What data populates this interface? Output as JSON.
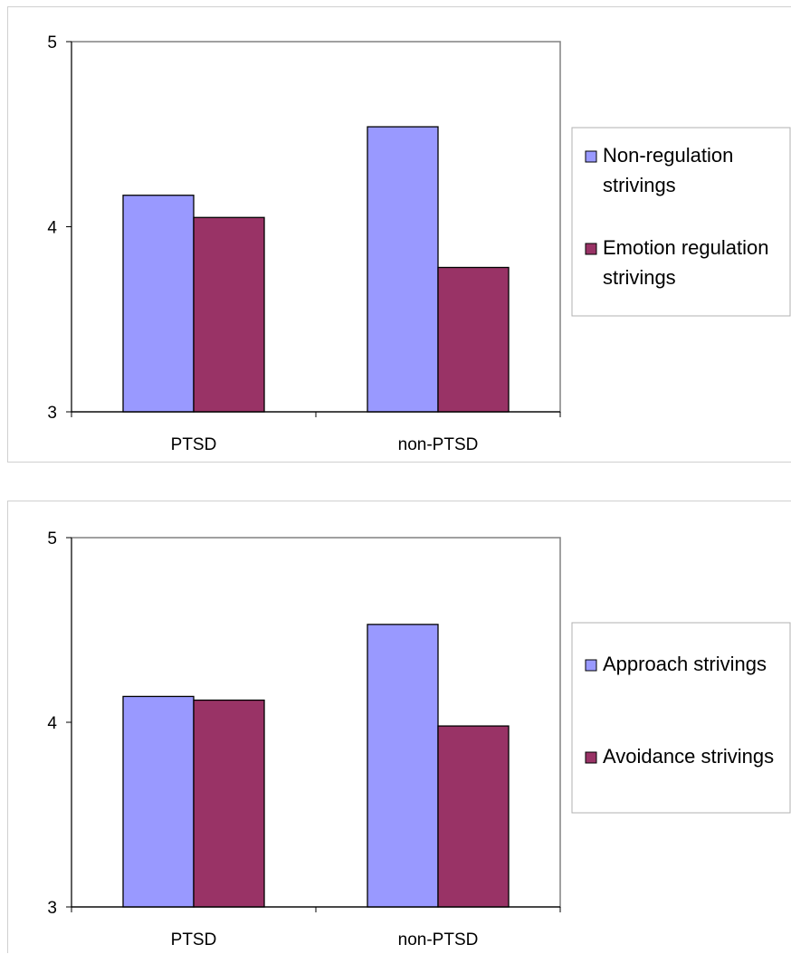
{
  "chart_data": [
    {
      "type": "bar",
      "categories": [
        "PTSD",
        "non-PTSD"
      ],
      "series": [
        {
          "name": "Non-regulation strivings",
          "values": [
            4.17,
            4.54
          ],
          "color": "#9999ff"
        },
        {
          "name": "Emotion regulation strivings",
          "values": [
            4.05,
            3.78
          ],
          "color": "#993366"
        }
      ],
      "ylim": [
        3,
        5
      ],
      "yticks": [
        "3",
        "4",
        "5"
      ],
      "legend": {
        "position": "right",
        "entries": [
          {
            "lines": [
              "Non-regulation",
              "strivings"
            ]
          },
          {
            "lines": [
              "Emotion regulation",
              "strivings"
            ]
          }
        ]
      },
      "grid": false
    },
    {
      "type": "bar",
      "categories": [
        "PTSD",
        "non-PTSD"
      ],
      "series": [
        {
          "name": "Approach strivings",
          "values": [
            4.14,
            4.53
          ],
          "color": "#9999ff"
        },
        {
          "name": "Avoidance strivings",
          "values": [
            4.12,
            3.98
          ],
          "color": "#993366"
        }
      ],
      "ylim": [
        3,
        5
      ],
      "yticks": [
        "3",
        "4",
        "5"
      ],
      "legend": {
        "position": "right",
        "entries": [
          {
            "lines": [
              "Approach strivings"
            ]
          },
          {
            "lines": [
              "Avoidance strivings"
            ]
          }
        ]
      },
      "grid": false
    }
  ]
}
